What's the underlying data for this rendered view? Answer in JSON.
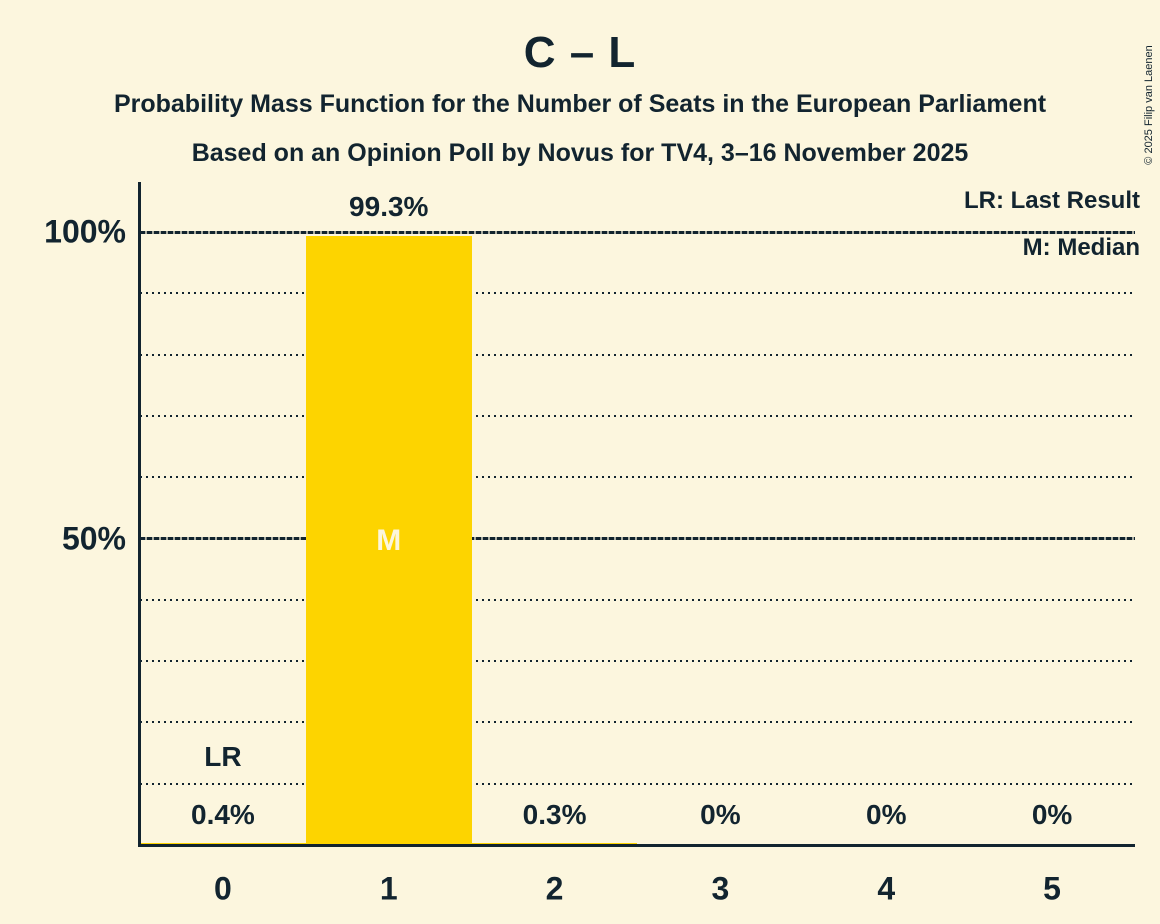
{
  "title": "C – L",
  "subtitles": [
    "Probability Mass Function for the Number of Seats in the European Parliament",
    "Based on an Opinion Poll by Novus for TV4, 3–16 November 2025"
  ],
  "copyright": "© 2025 Filip van Laenen",
  "colors": {
    "background": "#FCF6DE",
    "bar": "#FDD400",
    "text": "#12242F"
  },
  "chart_data": {
    "type": "bar",
    "title": "C – L",
    "categories": [
      "0",
      "1",
      "2",
      "3",
      "4",
      "5"
    ],
    "values": [
      0.4,
      99.3,
      0.3,
      0,
      0,
      0
    ],
    "value_labels": [
      "0.4%",
      "99.3%",
      "0.3%",
      "0%",
      "0%",
      "0%"
    ],
    "xlabel": "",
    "ylabel": "",
    "ylim": [
      0,
      100
    ],
    "yticks": [
      {
        "pct": 100,
        "label": "100%"
      },
      {
        "pct": 50,
        "label": "50%"
      }
    ],
    "grid": {
      "dotted_step_pct": 10,
      "dashed_pcts": [
        50,
        100
      ],
      "grid_on": true
    },
    "legend": [
      {
        "id": "lr",
        "label": "LR: Last Result"
      },
      {
        "id": "m",
        "label": "M: Median"
      }
    ],
    "annotations": {
      "median": {
        "category": "1",
        "marker": "M"
      },
      "last_result": {
        "category": "0",
        "marker": "LR"
      }
    }
  }
}
